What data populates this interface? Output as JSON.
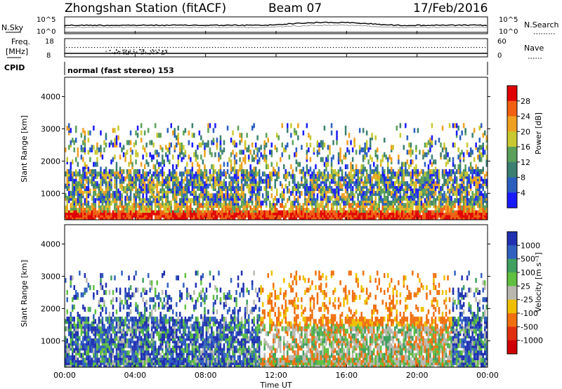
{
  "header": {
    "station": "Zhongshan Station (fitACF)",
    "beam": "Beam 07",
    "date": "17/Feb/2016"
  },
  "top_panels": {
    "noise": {
      "left_label": "N.Sky",
      "right_label": "N.Search",
      "left_ticks": [
        "10^5",
        "10^0"
      ],
      "right_ticks": [
        "10^5",
        "10^0"
      ]
    },
    "freq": {
      "left_label_line1": "Freq.",
      "left_label_line2": "[MHz]",
      "right_label": "Nave",
      "left_ticks": [
        "18",
        "8"
      ],
      "right_ticks": [
        "60",
        "0"
      ]
    },
    "cpid_label": "CPID",
    "cpid_text": "normal (fast stereo) 153"
  },
  "x_axis": {
    "label": "Time UT",
    "ticks": [
      "00:00",
      "04:00",
      "08:00",
      "12:00",
      "16:00",
      "20:00",
      "00:00"
    ]
  },
  "chart_data": [
    {
      "type": "heatmap",
      "name": "power",
      "ylabel": "Slant Range [km]",
      "yticks": [
        1000,
        2000,
        3000,
        4000
      ],
      "ylim": [
        180,
        4600
      ],
      "xlim": [
        0,
        24
      ],
      "colorbar": {
        "label": "Power [dB]",
        "ticks": [
          "4",
          "8",
          "12",
          "16",
          "20",
          "24",
          "28"
        ],
        "colors": [
          "#1a1aff",
          "#2a5fc0",
          "#3a7f70",
          "#5aa05a",
          "#c8c830",
          "#f0a020",
          "#f06010",
          "#e00000"
        ]
      }
    },
    {
      "type": "heatmap",
      "name": "velocity",
      "ylabel": "Slant Range [km]",
      "yticks": [
        1000,
        2000,
        3000,
        4000
      ],
      "ylim": [
        180,
        4600
      ],
      "xlim": [
        0,
        24
      ],
      "colorbar": {
        "label": "Velocity [m s⁻¹]",
        "ticks": [
          "1000",
          "500",
          "100",
          "25",
          "-25",
          "-100",
          "-500",
          "-1000"
        ],
        "colors": [
          "#2030b0",
          "#3060c0",
          "#40a060",
          "#60c040",
          "#b8b8b0",
          "#f0c000",
          "#f07010",
          "#e03010",
          "#d00000"
        ]
      }
    }
  ]
}
